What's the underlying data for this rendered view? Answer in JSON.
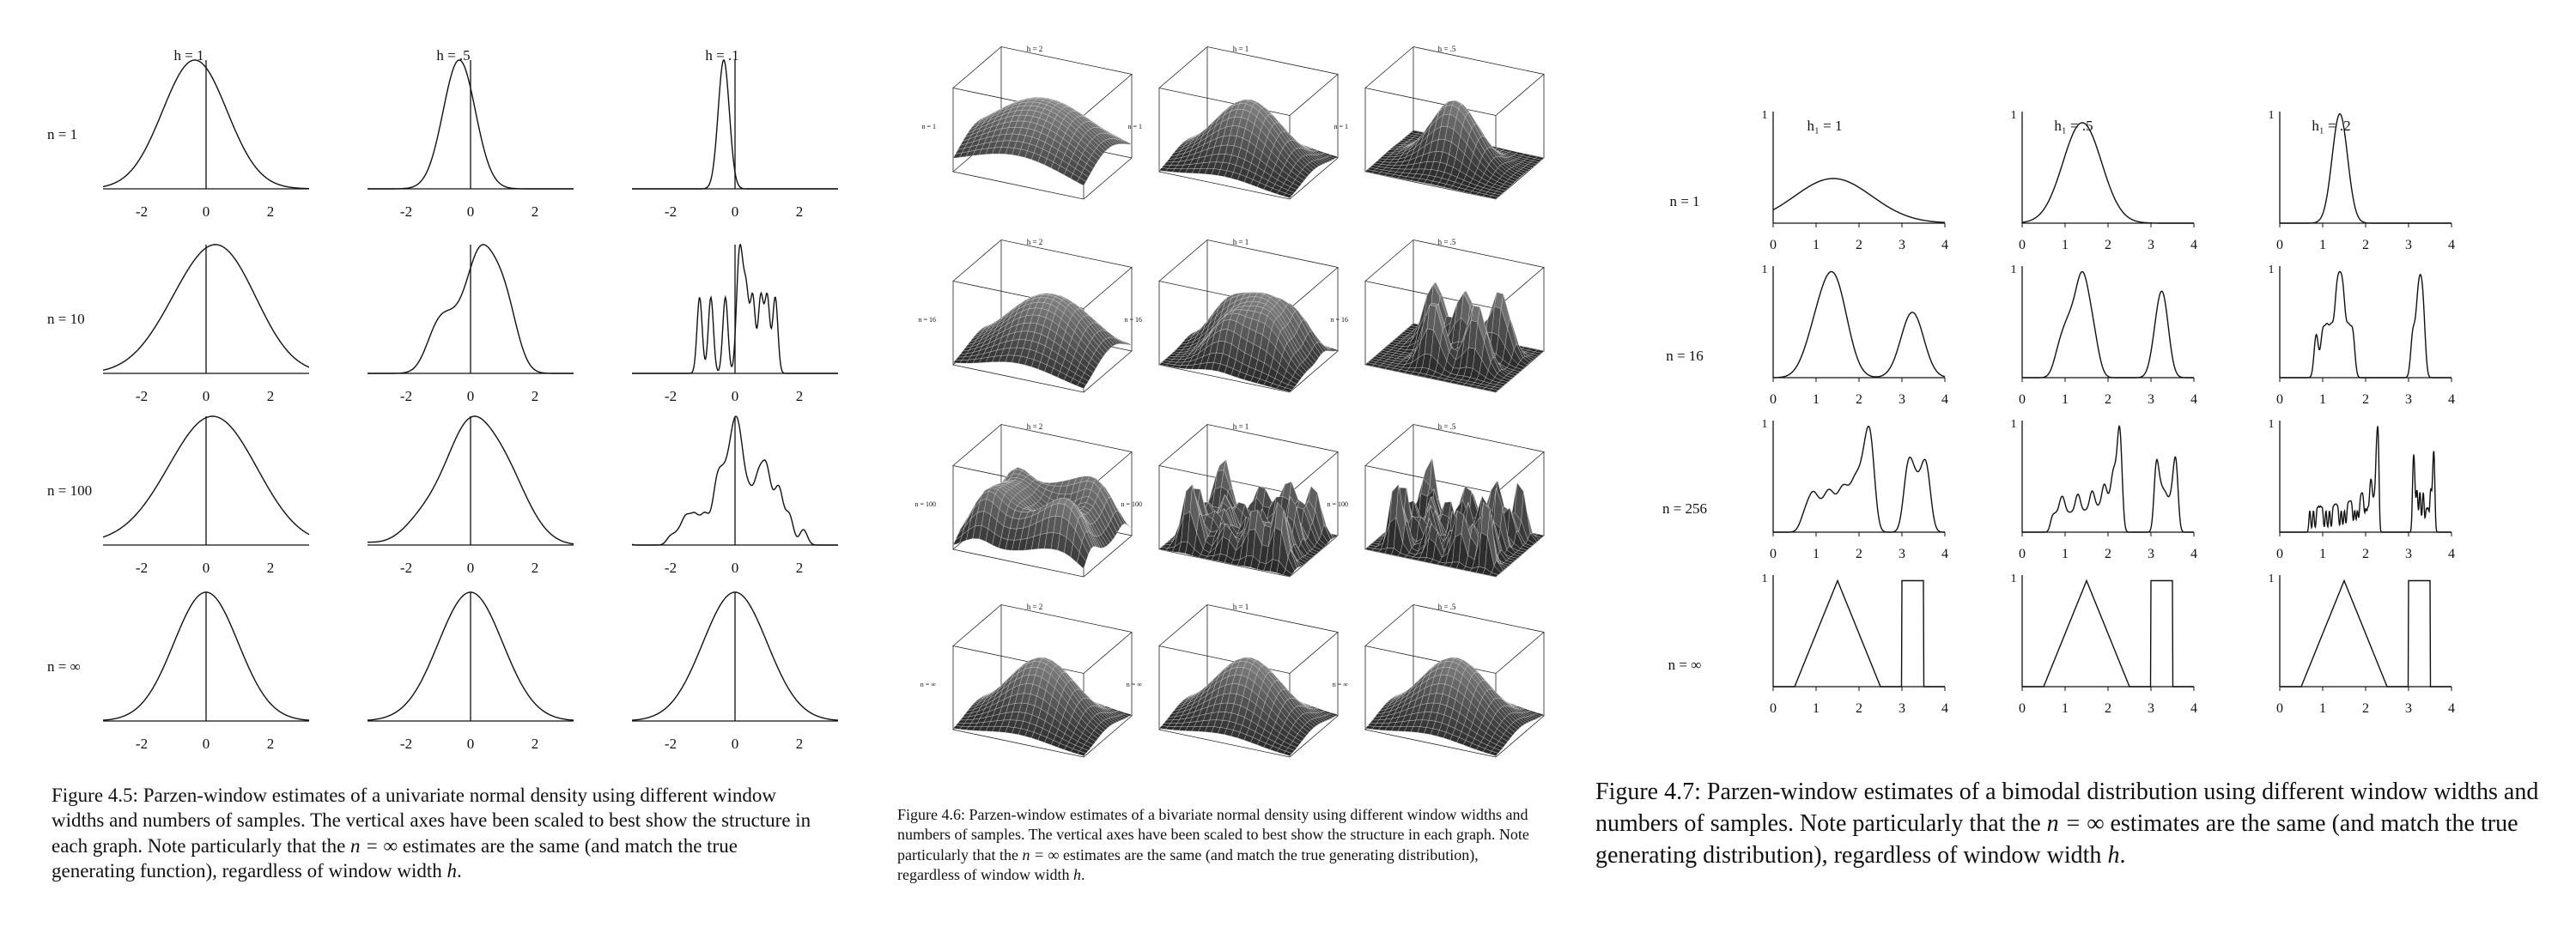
{
  "fig45": {
    "col_titles": [
      "h = 1",
      "h = .5",
      "h = .1"
    ],
    "row_labels": [
      "n = 1",
      "n = 10",
      "n = 100",
      "n = ∞"
    ],
    "tick_labels": [
      "-2",
      "0",
      "2"
    ],
    "caption": {
      "prefix": "Figure 4.5: Parzen-window estimates of a univariate normal density using different window widths and numbers of samples. The vertical axes have been scaled to best show the structure in each graph. Note particularly that the ",
      "math": "n = ∞",
      "suffix": " estimates are the same (and match the true generating function), regardless of window width ",
      "var": "h",
      "end": "."
    }
  },
  "fig46": {
    "col_titles": [
      "h = 2",
      "h = 1",
      "h = .5"
    ],
    "row_labels": [
      "n = 1",
      "n = 16",
      "n = 100",
      "n = ∞"
    ],
    "caption": {
      "prefix": "Figure 4.6: Parzen-window estimates of a bivariate normal density using different window widths and numbers of samples. The vertical axes have been scaled to best show the structure in each graph. Note particularly that the ",
      "math": "n = ∞",
      "suffix": " estimates are the same (and match the true generating distribution), regardless of window width ",
      "var": "h",
      "end": "."
    }
  },
  "fig47": {
    "col_titles": [
      "h₁ = 1",
      "h₁ = .5",
      "h₁ = .2"
    ],
    "row_labels": [
      "n = 1",
      "n = 16",
      "n = 256",
      "n = ∞"
    ],
    "tick_labels": [
      "0",
      "1",
      "2",
      "3",
      "4"
    ],
    "y_top_label": "1",
    "caption": {
      "prefix": "Figure 4.7: Parzen-window estimates of a bimodal distribution using different window widths and numbers of samples. Note particularly that the ",
      "math": "n = ∞",
      "suffix": " estimates are the same (and match the true generating distribution), regardless of window width ",
      "var": "h",
      "end": "."
    }
  }
}
